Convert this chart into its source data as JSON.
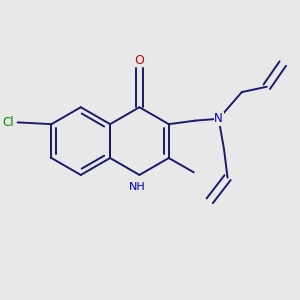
{
  "bg_color": "#e8e8e8",
  "bond_color": "#1a1a6e",
  "bond_width": 1.4,
  "atom_colors": {
    "O": "#cc0000",
    "N": "#0000cc",
    "Cl": "#008800",
    "C": "#1a1a6e"
  },
  "font_size_atom": 8.5,
  "xlim": [
    -0.55,
    1.05
  ],
  "ylim": [
    -0.75,
    0.65
  ]
}
